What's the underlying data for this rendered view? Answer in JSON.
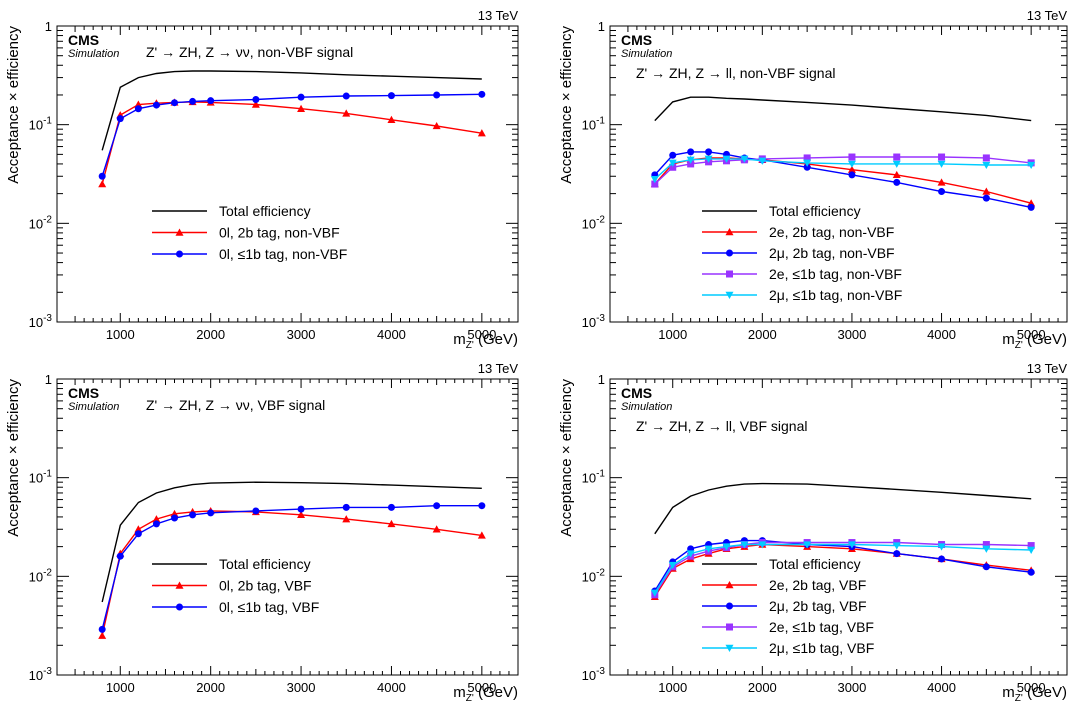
{
  "chart_data": [
    {
      "type": "line",
      "energy": "13 TeV",
      "cms": "CMS",
      "simulation": "Simulation",
      "process": "Z' → ZH, Z → νν, non-VBF signal",
      "xlabel": "m_Z' (GeV)",
      "ylabel": "Acceptance × efficiency",
      "xlim": [
        300,
        5400
      ],
      "ylim": [
        0.001,
        1
      ],
      "yscale": "log",
      "xticks": [
        1000,
        2000,
        3000,
        4000,
        5000
      ],
      "yticks": [
        {
          "value": 0.001,
          "label": "10-3"
        },
        {
          "value": 0.01,
          "label": "10-2"
        },
        {
          "value": 0.1,
          "label": "10-1"
        },
        {
          "value": 1,
          "label": "1"
        }
      ],
      "legend_position": "center-left",
      "series": [
        {
          "name": "Total efficiency",
          "color": "#000000",
          "marker": "none",
          "x": [
            800,
            1000,
            1200,
            1400,
            1600,
            1800,
            2000,
            2500,
            3000,
            3500,
            4000,
            4500,
            5000
          ],
          "values": [
            0.055,
            0.24,
            0.3,
            0.33,
            0.345,
            0.35,
            0.35,
            0.345,
            0.335,
            0.32,
            0.31,
            0.3,
            0.29
          ]
        },
        {
          "name": "0l, 2b tag, non-VBF",
          "color": "#ff0000",
          "marker": "triangle",
          "x": [
            800,
            1000,
            1200,
            1400,
            1600,
            1800,
            2000,
            2500,
            3000,
            3500,
            4000,
            4500,
            5000
          ],
          "values": [
            0.025,
            0.125,
            0.16,
            0.165,
            0.168,
            0.17,
            0.168,
            0.16,
            0.145,
            0.13,
            0.112,
            0.097,
            0.082
          ]
        },
        {
          "name": "0l, ≤1b tag, non-VBF",
          "color": "#0000ff",
          "marker": "circle",
          "x": [
            800,
            1000,
            1200,
            1400,
            1600,
            1800,
            2000,
            2500,
            3000,
            3500,
            4000,
            4500,
            5000
          ],
          "values": [
            0.03,
            0.115,
            0.145,
            0.158,
            0.167,
            0.172,
            0.175,
            0.18,
            0.19,
            0.195,
            0.197,
            0.2,
            0.203
          ]
        }
      ]
    },
    {
      "type": "line",
      "energy": "13 TeV",
      "cms": "CMS",
      "simulation": "Simulation",
      "process": "Z' → ZH, Z → ll, non-VBF signal",
      "xlabel": "m_Z' (GeV)",
      "ylabel": "Acceptance × efficiency",
      "xlim": [
        300,
        5400
      ],
      "ylim": [
        0.001,
        1
      ],
      "yscale": "log",
      "xticks": [
        1000,
        2000,
        3000,
        4000,
        5000
      ],
      "yticks": [
        {
          "value": 0.001,
          "label": "10-3"
        },
        {
          "value": 0.01,
          "label": "10-2"
        },
        {
          "value": 0.1,
          "label": "10-1"
        },
        {
          "value": 1,
          "label": "1"
        }
      ],
      "legend_position": "bottom-center",
      "series": [
        {
          "name": "Total efficiency",
          "color": "#000000",
          "marker": "none",
          "x": [
            800,
            1000,
            1200,
            1400,
            1600,
            1800,
            2000,
            2500,
            3000,
            3500,
            4000,
            4500,
            5000
          ],
          "values": [
            0.11,
            0.17,
            0.19,
            0.19,
            0.185,
            0.182,
            0.178,
            0.168,
            0.158,
            0.146,
            0.135,
            0.124,
            0.11
          ]
        },
        {
          "name": "2e, 2b tag, non-VBF",
          "color": "#ff0000",
          "marker": "triangle",
          "x": [
            800,
            1000,
            1200,
            1400,
            1600,
            1800,
            2000,
            2500,
            3000,
            3500,
            4000,
            4500,
            5000
          ],
          "values": [
            0.025,
            0.04,
            0.044,
            0.046,
            0.046,
            0.045,
            0.044,
            0.04,
            0.035,
            0.031,
            0.026,
            0.021,
            0.016
          ]
        },
        {
          "name": "2μ, 2b tag, non-VBF",
          "color": "#0000ff",
          "marker": "circle",
          "x": [
            800,
            1000,
            1200,
            1400,
            1600,
            1800,
            2000,
            2500,
            3000,
            3500,
            4000,
            4500,
            5000
          ],
          "values": [
            0.031,
            0.049,
            0.053,
            0.053,
            0.05,
            0.046,
            0.044,
            0.037,
            0.031,
            0.026,
            0.021,
            0.018,
            0.0145
          ]
        },
        {
          "name": "2e, ≤1b tag, non-VBF",
          "color": "#9933ff",
          "marker": "square",
          "x": [
            800,
            1000,
            1200,
            1400,
            1600,
            1800,
            2000,
            2500,
            3000,
            3500,
            4000,
            4500,
            5000
          ],
          "values": [
            0.025,
            0.037,
            0.04,
            0.042,
            0.043,
            0.044,
            0.045,
            0.046,
            0.047,
            0.047,
            0.047,
            0.046,
            0.041
          ]
        },
        {
          "name": "2μ, ≤1b tag, non-VBF",
          "color": "#00ccff",
          "marker": "triangle-down",
          "x": [
            800,
            1000,
            1200,
            1400,
            1600,
            1800,
            2000,
            2500,
            3000,
            3500,
            4000,
            4500,
            5000
          ],
          "values": [
            0.028,
            0.041,
            0.044,
            0.045,
            0.045,
            0.045,
            0.043,
            0.041,
            0.04,
            0.04,
            0.04,
            0.039,
            0.039
          ]
        }
      ]
    },
    {
      "type": "line",
      "energy": "13 TeV",
      "cms": "CMS",
      "simulation": "Simulation",
      "process": "Z' → ZH, Z → νν, VBF signal",
      "xlabel": "m_Z' (GeV)",
      "ylabel": "Acceptance × efficiency",
      "xlim": [
        300,
        5400
      ],
      "ylim": [
        0.001,
        1
      ],
      "yscale": "log",
      "xticks": [
        1000,
        2000,
        3000,
        4000,
        5000
      ],
      "yticks": [
        {
          "value": 0.001,
          "label": "10-3"
        },
        {
          "value": 0.01,
          "label": "10-2"
        },
        {
          "value": 0.1,
          "label": "10-1"
        },
        {
          "value": 1,
          "label": "1"
        }
      ],
      "legend_position": "center-left",
      "series": [
        {
          "name": "Total efficiency",
          "color": "#000000",
          "marker": "none",
          "x": [
            800,
            1000,
            1200,
            1400,
            1600,
            1800,
            2000,
            2500,
            3000,
            3500,
            4000,
            4500,
            5000
          ],
          "values": [
            0.0055,
            0.033,
            0.056,
            0.07,
            0.079,
            0.085,
            0.088,
            0.09,
            0.089,
            0.087,
            0.084,
            0.081,
            0.078
          ]
        },
        {
          "name": "0l, 2b tag, VBF",
          "color": "#ff0000",
          "marker": "triangle",
          "x": [
            800,
            1000,
            1200,
            1400,
            1600,
            1800,
            2000,
            2500,
            3000,
            3500,
            4000,
            4500,
            5000
          ],
          "values": [
            0.0025,
            0.017,
            0.03,
            0.038,
            0.043,
            0.045,
            0.046,
            0.045,
            0.042,
            0.038,
            0.034,
            0.03,
            0.026
          ]
        },
        {
          "name": "0l, ≤1b tag, VBF",
          "color": "#0000ff",
          "marker": "circle",
          "x": [
            800,
            1000,
            1200,
            1400,
            1600,
            1800,
            2000,
            2500,
            3000,
            3500,
            4000,
            4500,
            5000
          ],
          "values": [
            0.0029,
            0.016,
            0.027,
            0.034,
            0.039,
            0.042,
            0.044,
            0.046,
            0.048,
            0.05,
            0.05,
            0.052,
            0.052
          ]
        }
      ]
    },
    {
      "type": "line",
      "energy": "13 TeV",
      "cms": "CMS",
      "simulation": "Simulation",
      "process": "Z' → ZH, Z → ll, VBF signal",
      "xlabel": "m_Z' (GeV)",
      "ylabel": "Acceptance × efficiency",
      "xlim": [
        300,
        5400
      ],
      "ylim": [
        0.001,
        1
      ],
      "yscale": "log",
      "xticks": [
        1000,
        2000,
        3000,
        4000,
        5000
      ],
      "yticks": [
        {
          "value": 0.001,
          "label": "10-3"
        },
        {
          "value": 0.01,
          "label": "10-2"
        },
        {
          "value": 0.1,
          "label": "10-1"
        },
        {
          "value": 1,
          "label": "1"
        }
      ],
      "legend_position": "bottom-center",
      "series": [
        {
          "name": "Total efficiency",
          "color": "#000000",
          "marker": "none",
          "x": [
            800,
            1000,
            1200,
            1400,
            1600,
            1800,
            2000,
            2500,
            3000,
            3500,
            4000,
            4500,
            5000
          ],
          "values": [
            0.027,
            0.05,
            0.065,
            0.075,
            0.082,
            0.086,
            0.087,
            0.086,
            0.081,
            0.076,
            0.071,
            0.066,
            0.061
          ]
        },
        {
          "name": "2e, 2b tag, VBF",
          "color": "#ff0000",
          "marker": "triangle",
          "x": [
            800,
            1000,
            1200,
            1400,
            1600,
            1800,
            2000,
            2500,
            3000,
            3500,
            4000,
            4500,
            5000
          ],
          "values": [
            0.0062,
            0.012,
            0.015,
            0.017,
            0.019,
            0.02,
            0.021,
            0.02,
            0.019,
            0.017,
            0.015,
            0.013,
            0.0115
          ]
        },
        {
          "name": "2μ, 2b tag, VBF",
          "color": "#0000ff",
          "marker": "circle",
          "x": [
            800,
            1000,
            1200,
            1400,
            1600,
            1800,
            2000,
            2500,
            3000,
            3500,
            4000,
            4500,
            5000
          ],
          "values": [
            0.0071,
            0.014,
            0.019,
            0.021,
            0.022,
            0.023,
            0.023,
            0.021,
            0.02,
            0.017,
            0.015,
            0.0125,
            0.011
          ]
        },
        {
          "name": "2e, ≤1b tag, VBF",
          "color": "#9933ff",
          "marker": "square",
          "x": [
            800,
            1000,
            1200,
            1400,
            1600,
            1800,
            2000,
            2500,
            3000,
            3500,
            4000,
            4500,
            5000
          ],
          "values": [
            0.0065,
            0.0125,
            0.016,
            0.018,
            0.0195,
            0.021,
            0.022,
            0.022,
            0.022,
            0.022,
            0.021,
            0.021,
            0.0205
          ]
        },
        {
          "name": "2μ, ≤1b tag, VBF",
          "color": "#00ccff",
          "marker": "triangle-down",
          "x": [
            800,
            1000,
            1200,
            1400,
            1600,
            1800,
            2000,
            2500,
            3000,
            3500,
            4000,
            4500,
            5000
          ],
          "values": [
            0.0068,
            0.013,
            0.017,
            0.019,
            0.02,
            0.021,
            0.021,
            0.021,
            0.021,
            0.0205,
            0.02,
            0.019,
            0.0185
          ]
        }
      ]
    }
  ]
}
